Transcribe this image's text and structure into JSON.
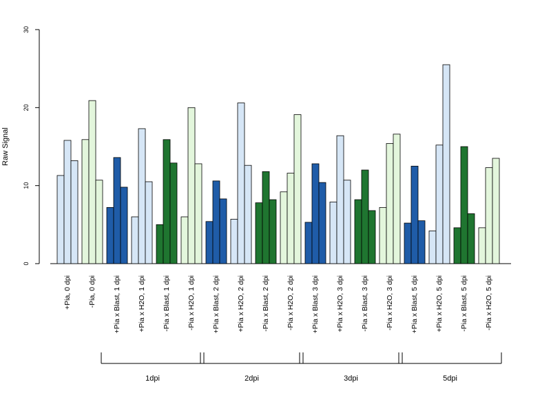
{
  "chart_data": {
    "type": "bar",
    "ylabel": "Raw Signal",
    "ylim": [
      0,
      30
    ],
    "yticks": [
      0,
      10,
      20,
      30
    ],
    "grid": false,
    "colors": {
      "light_blue": "#d6e6f6",
      "dark_blue": "#1f5ca8",
      "light_green": "#e3f6dc",
      "dark_green": "#1f7530"
    },
    "categories": [
      "+Pia, 0 dpi",
      "-Pia, 0 dpi",
      "+Pia x Blast, 1 dpi",
      "+Pia x H2O, 1 dpi",
      "-Pia x Blast, 1 dpi",
      "-Pia x H2O, 1 dpi",
      "+Pia x Blast, 2 dpi",
      "+Pia x H2O, 2 dpi",
      "-Pia x Blast, 2 dpi",
      "-Pia x H2O, 2 dpi",
      "+Pia x Blast, 3 dpi",
      "+Pia x H2O, 3 dpi",
      "-Pia x Blast, 3 dpi",
      "-Pia x H2O, 3 dpi",
      "+Pia x Blast, 5 dpi",
      "+Pia x H2O, 5 dpi",
      "-Pia x Blast, 5 dpi",
      "-Pia x H2O, 5 dpi"
    ],
    "category_colors": [
      "light_blue",
      "light_green",
      "dark_blue",
      "light_blue",
      "dark_green",
      "light_green",
      "dark_blue",
      "light_blue",
      "dark_green",
      "light_green",
      "dark_blue",
      "light_blue",
      "dark_green",
      "light_green",
      "dark_blue",
      "light_blue",
      "dark_green",
      "light_green"
    ],
    "values": [
      [
        11.3,
        15.8,
        13.2
      ],
      [
        15.9,
        20.9,
        10.7
      ],
      [
        7.2,
        13.6,
        9.8
      ],
      [
        6.0,
        17.3,
        10.5
      ],
      [
        5.0,
        15.9,
        12.9
      ],
      [
        6.0,
        20.0,
        12.8
      ],
      [
        5.4,
        10.6,
        8.3
      ],
      [
        5.7,
        20.6,
        12.6
      ],
      [
        7.8,
        11.8,
        8.2
      ],
      [
        9.2,
        11.6,
        19.1
      ],
      [
        5.3,
        12.8,
        10.4
      ],
      [
        7.9,
        16.4,
        10.7
      ],
      [
        8.2,
        12.0,
        6.8
      ],
      [
        7.2,
        15.4,
        16.6
      ],
      [
        5.2,
        12.5,
        5.5
      ],
      [
        4.2,
        15.2,
        25.5
      ],
      [
        4.6,
        15.0,
        6.4
      ],
      [
        4.6,
        12.3,
        13.5
      ]
    ],
    "groups": [
      {
        "label": "1dpi",
        "start": 2,
        "end": 5
      },
      {
        "label": "2dpi",
        "start": 6,
        "end": 9
      },
      {
        "label": "3dpi",
        "start": 10,
        "end": 13
      },
      {
        "label": "5dpi",
        "start": 14,
        "end": 17
      }
    ]
  }
}
